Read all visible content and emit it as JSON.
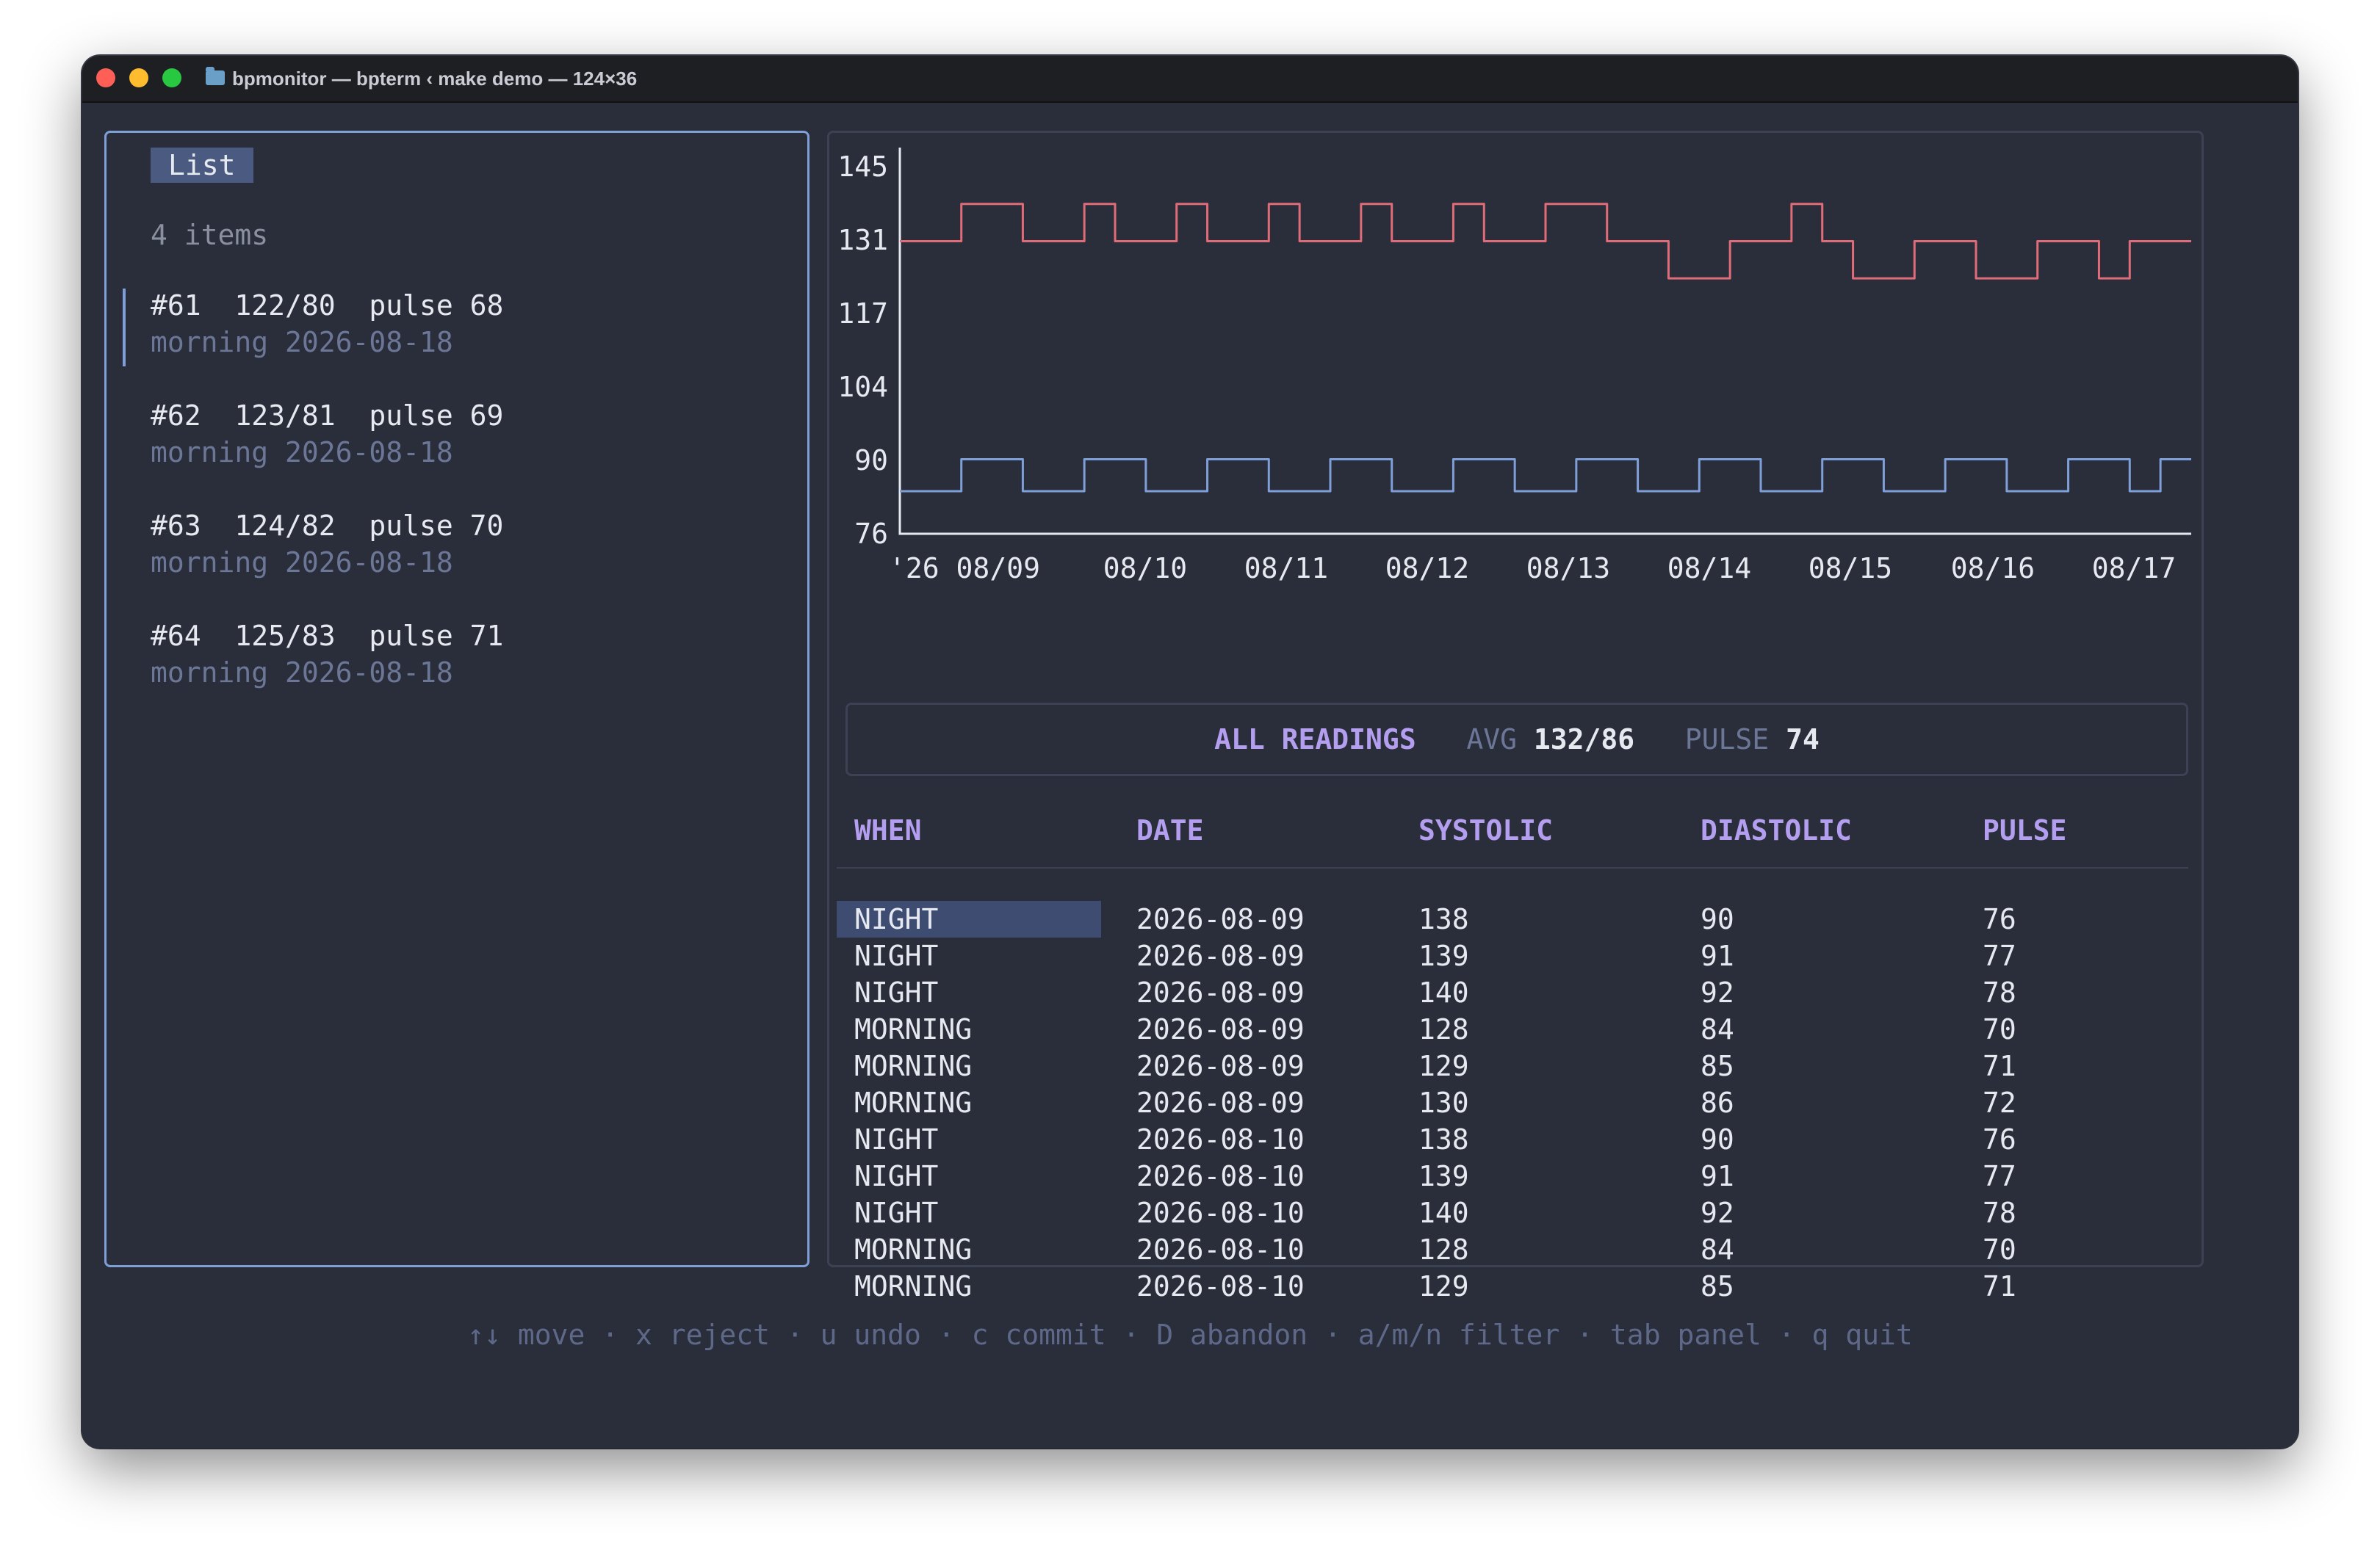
{
  "window": {
    "title": "bpmonitor — bpterm ‹ make demo — 124×36"
  },
  "left_panel": {
    "title": "List",
    "count": "4 items",
    "items": [
      {
        "line1": "#61  122/80  pulse 68",
        "line2": "morning 2026-08-18"
      },
      {
        "line1": "#62  123/81  pulse 69",
        "line2": "morning 2026-08-18"
      },
      {
        "line1": "#63  124/82  pulse 70",
        "line2": "morning 2026-08-18"
      },
      {
        "line1": "#64  125/83  pulse 71",
        "line2": "morning 2026-08-18"
      }
    ]
  },
  "chart_data": {
    "type": "line",
    "y_ticks": [
      "145",
      "131",
      "117",
      "104",
      "90",
      "76"
    ],
    "ylim": [
      76,
      145
    ],
    "x_ticks": [
      "'26 08/09",
      "08/10",
      "08/11",
      "08/12",
      "08/13",
      "08/14",
      "08/15",
      "08/16",
      "08/17"
    ],
    "series": [
      {
        "color": "#e06c7a",
        "values": [
          131,
          131,
          138,
          138,
          131,
          131,
          138,
          131,
          131,
          138,
          131,
          131,
          138,
          131,
          131,
          138,
          131,
          131,
          138,
          131,
          131,
          138,
          138,
          131,
          131,
          124,
          124,
          131,
          131,
          138,
          131,
          124,
          124,
          131,
          131,
          124,
          124,
          131,
          131,
          124,
          131,
          131
        ]
      },
      {
        "color": "#7f9fd8",
        "values": [
          84,
          84,
          90,
          90,
          84,
          84,
          90,
          90,
          84,
          84,
          90,
          90,
          84,
          84,
          90,
          90,
          84,
          84,
          90,
          90,
          84,
          84,
          90,
          90,
          84,
          84,
          90,
          90,
          84,
          84,
          90,
          90,
          84,
          84,
          90,
          90,
          84,
          84,
          90,
          90,
          84,
          90
        ]
      }
    ]
  },
  "summary": {
    "label": "ALL READINGS",
    "avg_label": "AVG",
    "avg_value": "132/86",
    "pulse_label": "PULSE",
    "pulse_value": "74"
  },
  "table": {
    "headers": [
      "WHEN",
      "DATE",
      "SYSTOLIC",
      "DIASTOLIC",
      "PULSE"
    ],
    "rows": [
      [
        "NIGHT",
        "2026-08-09",
        "138",
        "90",
        "76"
      ],
      [
        "NIGHT",
        "2026-08-09",
        "139",
        "91",
        "77"
      ],
      [
        "NIGHT",
        "2026-08-09",
        "140",
        "92",
        "78"
      ],
      [
        "MORNING",
        "2026-08-09",
        "128",
        "84",
        "70"
      ],
      [
        "MORNING",
        "2026-08-09",
        "129",
        "85",
        "71"
      ],
      [
        "MORNING",
        "2026-08-09",
        "130",
        "86",
        "72"
      ],
      [
        "NIGHT",
        "2026-08-10",
        "138",
        "90",
        "76"
      ],
      [
        "NIGHT",
        "2026-08-10",
        "139",
        "91",
        "77"
      ],
      [
        "NIGHT",
        "2026-08-10",
        "140",
        "92",
        "78"
      ],
      [
        "MORNING",
        "2026-08-10",
        "128",
        "84",
        "70"
      ],
      [
        "MORNING",
        "2026-08-10",
        "129",
        "85",
        "71"
      ]
    ]
  },
  "footer": {
    "hints": "↑↓ move · x reject · u undo · c commit · D abandon · a/m/n filter · tab panel · q quit"
  }
}
